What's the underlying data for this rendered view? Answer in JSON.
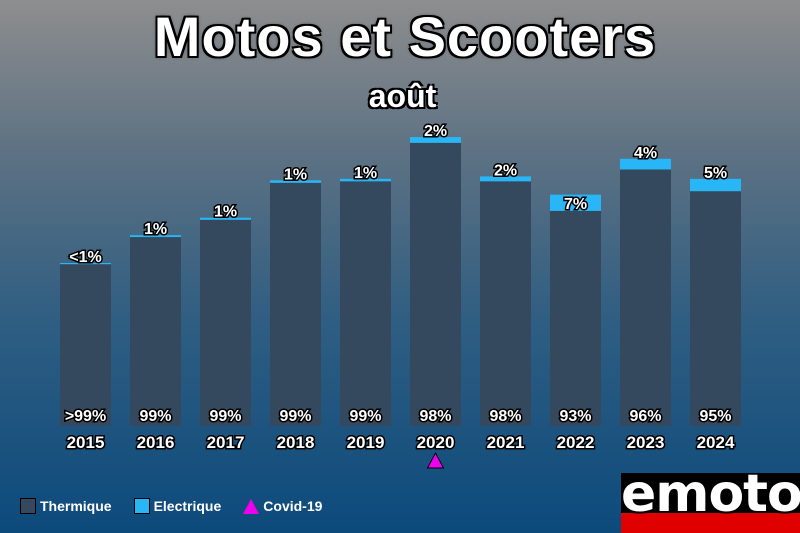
{
  "header": {
    "title": "Motos et Scooters",
    "subtitle": "août"
  },
  "chart_data": {
    "type": "bar",
    "stacked": true,
    "categories": [
      "2015",
      "2016",
      "2017",
      "2018",
      "2019",
      "2020",
      "2021",
      "2022",
      "2023",
      "2024"
    ],
    "series": [
      {
        "name": "Thermique",
        "color": "#34495e",
        "values": [
          1640,
          1915,
          2090,
          2465,
          2480,
          2870,
          2480,
          2180,
          2600,
          2380
        ],
        "labels": [
          ">99%",
          "99%",
          "99%",
          "99%",
          "99%",
          "98%",
          "98%",
          "93%",
          "96%",
          "95%"
        ]
      },
      {
        "name": "Electrique",
        "color": "#29b6f6",
        "values": [
          12,
          19,
          21,
          25,
          25,
          58,
          50,
          165,
          108,
          125
        ],
        "labels": [
          "<1%",
          "1%",
          "1%",
          "1%",
          "1%",
          "2%",
          "2%",
          "7%",
          "4%",
          "5%"
        ]
      }
    ],
    "annotations": [
      {
        "category": "2020",
        "marker": "triangle",
        "label": "Covid-19",
        "color": "#ee00ee"
      }
    ],
    "ylim": [
      0,
      3000
    ],
    "grid": false,
    "legend_position": "bottom-left"
  },
  "legend": {
    "thermique": "Thermique",
    "electrique": "Electrique",
    "covid": "Covid-19"
  },
  "logo": {
    "text": "emoto"
  }
}
